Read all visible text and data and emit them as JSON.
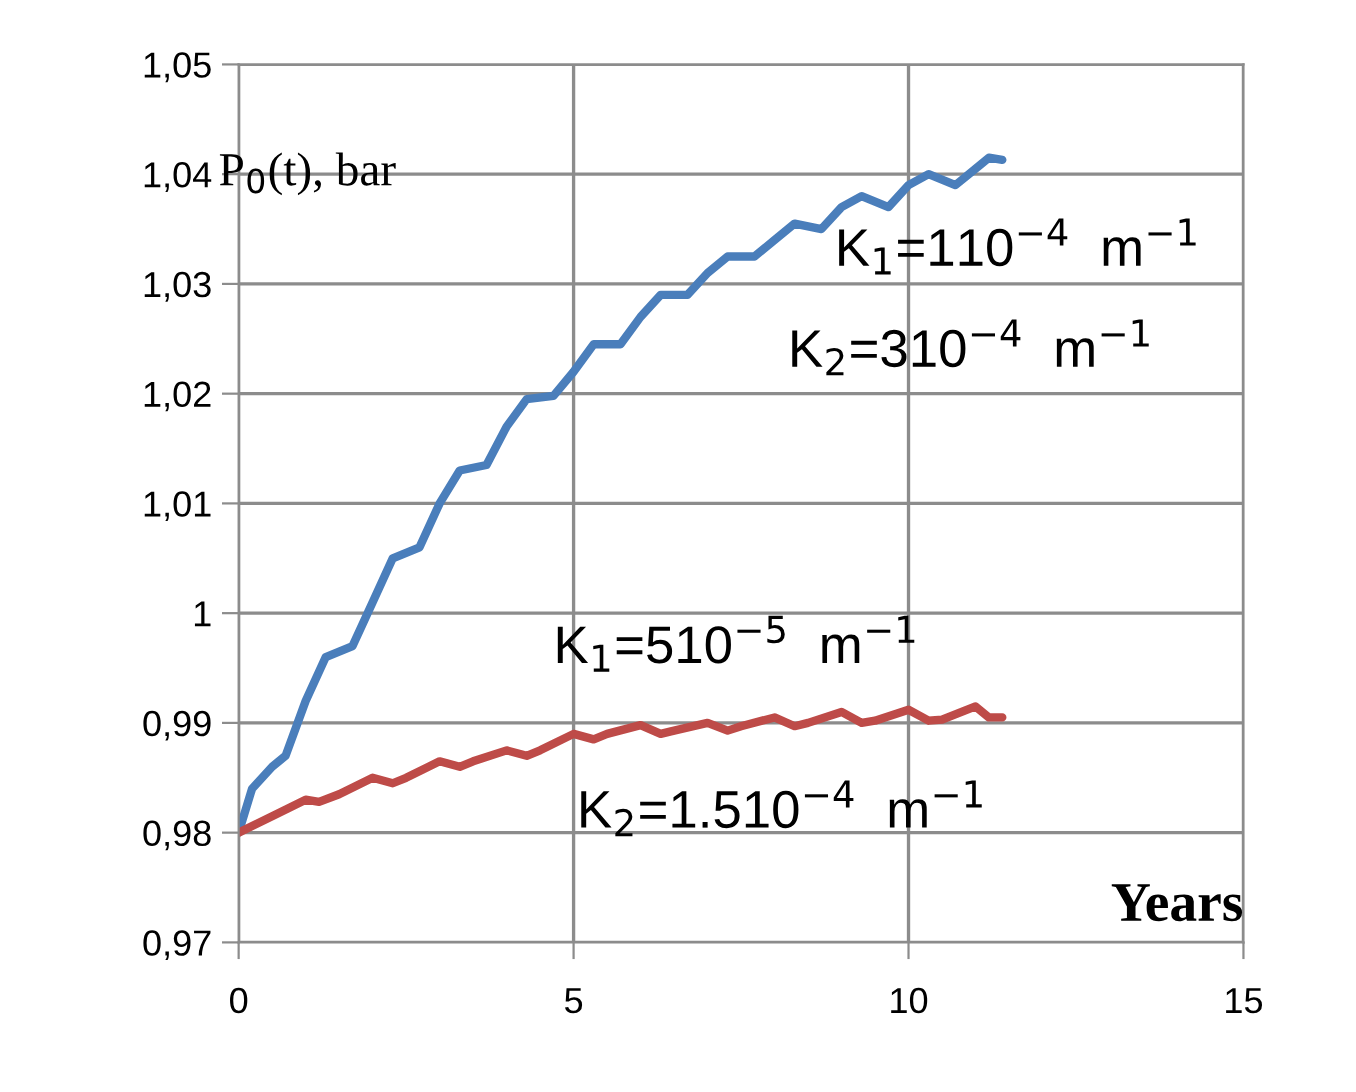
{
  "chart_data": {
    "type": "line",
    "xlabel": "Years",
    "ylabel": "P$_{0}$(t), bar",
    "xlim": [
      0,
      15
    ],
    "xticks": [
      0,
      5,
      10,
      15
    ],
    "ylim": [
      0.97,
      1.05
    ],
    "yticks": [
      {
        "value": 0.97,
        "label": "0,97"
      },
      {
        "value": 0.98,
        "label": "0,98"
      },
      {
        "value": 0.99,
        "label": "0,99"
      },
      1,
      {
        "value": 1.01,
        "label": "1,01"
      },
      {
        "value": 1.02,
        "label": "1,02"
      },
      {
        "value": 1.03,
        "label": "1,03"
      },
      {
        "value": 1.04,
        "label": "1,04"
      },
      {
        "value": 1.05,
        "label": "1,05"
      }
    ],
    "grid": true,
    "legend": false,
    "annotations": [
      "K$_{1}$=110$^{−4}$  m$^{−1}$",
      "K$_{2}$=310$^{−4}$  m$^{−1}$",
      "K$_{1}$=510$^{−5}$  m$^{−1}$",
      "K$_{2}$=1.510$^{−4}$  m$^{−1}$"
    ],
    "series": [
      {
        "color": "#4a7ebb",
        "x": [
          0,
          0.2,
          0.5,
          0.7,
          1.0,
          1.3,
          1.7,
          2.0,
          2.3,
          2.7,
          3.0,
          3.3,
          3.7,
          4.0,
          4.3,
          4.7,
          5.0,
          5.3,
          5.7,
          6.0,
          6.3,
          6.7,
          7.0,
          7.3,
          7.7,
          8.0,
          8.3,
          8.7,
          9.0,
          9.3,
          9.7,
          10.0,
          10.3,
          10.7,
          11.0,
          11.2,
          11.4
        ],
        "values": [
          0.98,
          0.984,
          0.986,
          0.987,
          0.992,
          0.996,
          0.997,
          1.001,
          1.005,
          1.006,
          1.01,
          1.013,
          1.0135,
          1.017,
          1.0195,
          1.0198,
          1.022,
          1.0245,
          1.0245,
          1.027,
          1.029,
          1.029,
          1.031,
          1.0325,
          1.0325,
          1.034,
          1.0355,
          1.035,
          1.037,
          1.038,
          1.037,
          1.039,
          1.04,
          1.039,
          1.0405,
          1.0415,
          1.0413
        ]
      },
      {
        "color": "#be4b48",
        "x": [
          0,
          0.5,
          1.0,
          1.2,
          1.5,
          2.0,
          2.3,
          2.5,
          3.0,
          3.3,
          3.5,
          4.0,
          4.3,
          4.5,
          5.0,
          5.3,
          5.5,
          6.0,
          6.3,
          6.5,
          7.0,
          7.3,
          7.5,
          8.0,
          8.3,
          8.5,
          9.0,
          9.3,
          9.5,
          10.0,
          10.3,
          10.5,
          11.0,
          11.2,
          11.4
        ],
        "values": [
          0.98,
          0.9815,
          0.983,
          0.9828,
          0.9835,
          0.985,
          0.9845,
          0.985,
          0.9865,
          0.986,
          0.9865,
          0.9875,
          0.987,
          0.9875,
          0.989,
          0.9885,
          0.989,
          0.9898,
          0.989,
          0.9893,
          0.99,
          0.9893,
          0.9897,
          0.9905,
          0.9897,
          0.99,
          0.991,
          0.99,
          0.9902,
          0.9912,
          0.9902,
          0.9903,
          0.9915,
          0.9905,
          0.9905
        ]
      }
    ]
  }
}
